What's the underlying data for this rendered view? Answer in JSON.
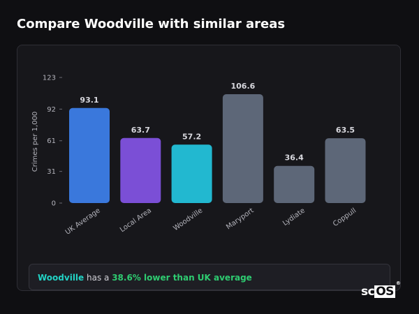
{
  "page": {
    "title": "Compare Woodville with similar areas"
  },
  "chart_data": {
    "type": "bar",
    "ylabel": "Crimes per 1,000",
    "xlabel": "",
    "ylim": [
      0,
      123
    ],
    "yticks": [
      0,
      31,
      61,
      92,
      123
    ],
    "grid": false,
    "categories": [
      "UK Average",
      "Local Area",
      "Woodville",
      "Maryport",
      "Lydiate",
      "Coppull"
    ],
    "values": [
      93.1,
      63.7,
      57.2,
      106.6,
      36.4,
      63.5
    ],
    "value_labels": [
      "93.1",
      "63.7",
      "57.2",
      "106.6",
      "36.4",
      "63.5"
    ],
    "colors": [
      "#3a78dc",
      "#7b4fd6",
      "#22b8d0",
      "#5d6778",
      "#5d6778",
      "#5d6778"
    ]
  },
  "summary": {
    "area": "Woodville",
    "middle": " has a ",
    "comparison": "38.6% lower than UK average"
  },
  "logo": {
    "prefix": "sc",
    "boxed": "OS",
    "mark": "®"
  }
}
